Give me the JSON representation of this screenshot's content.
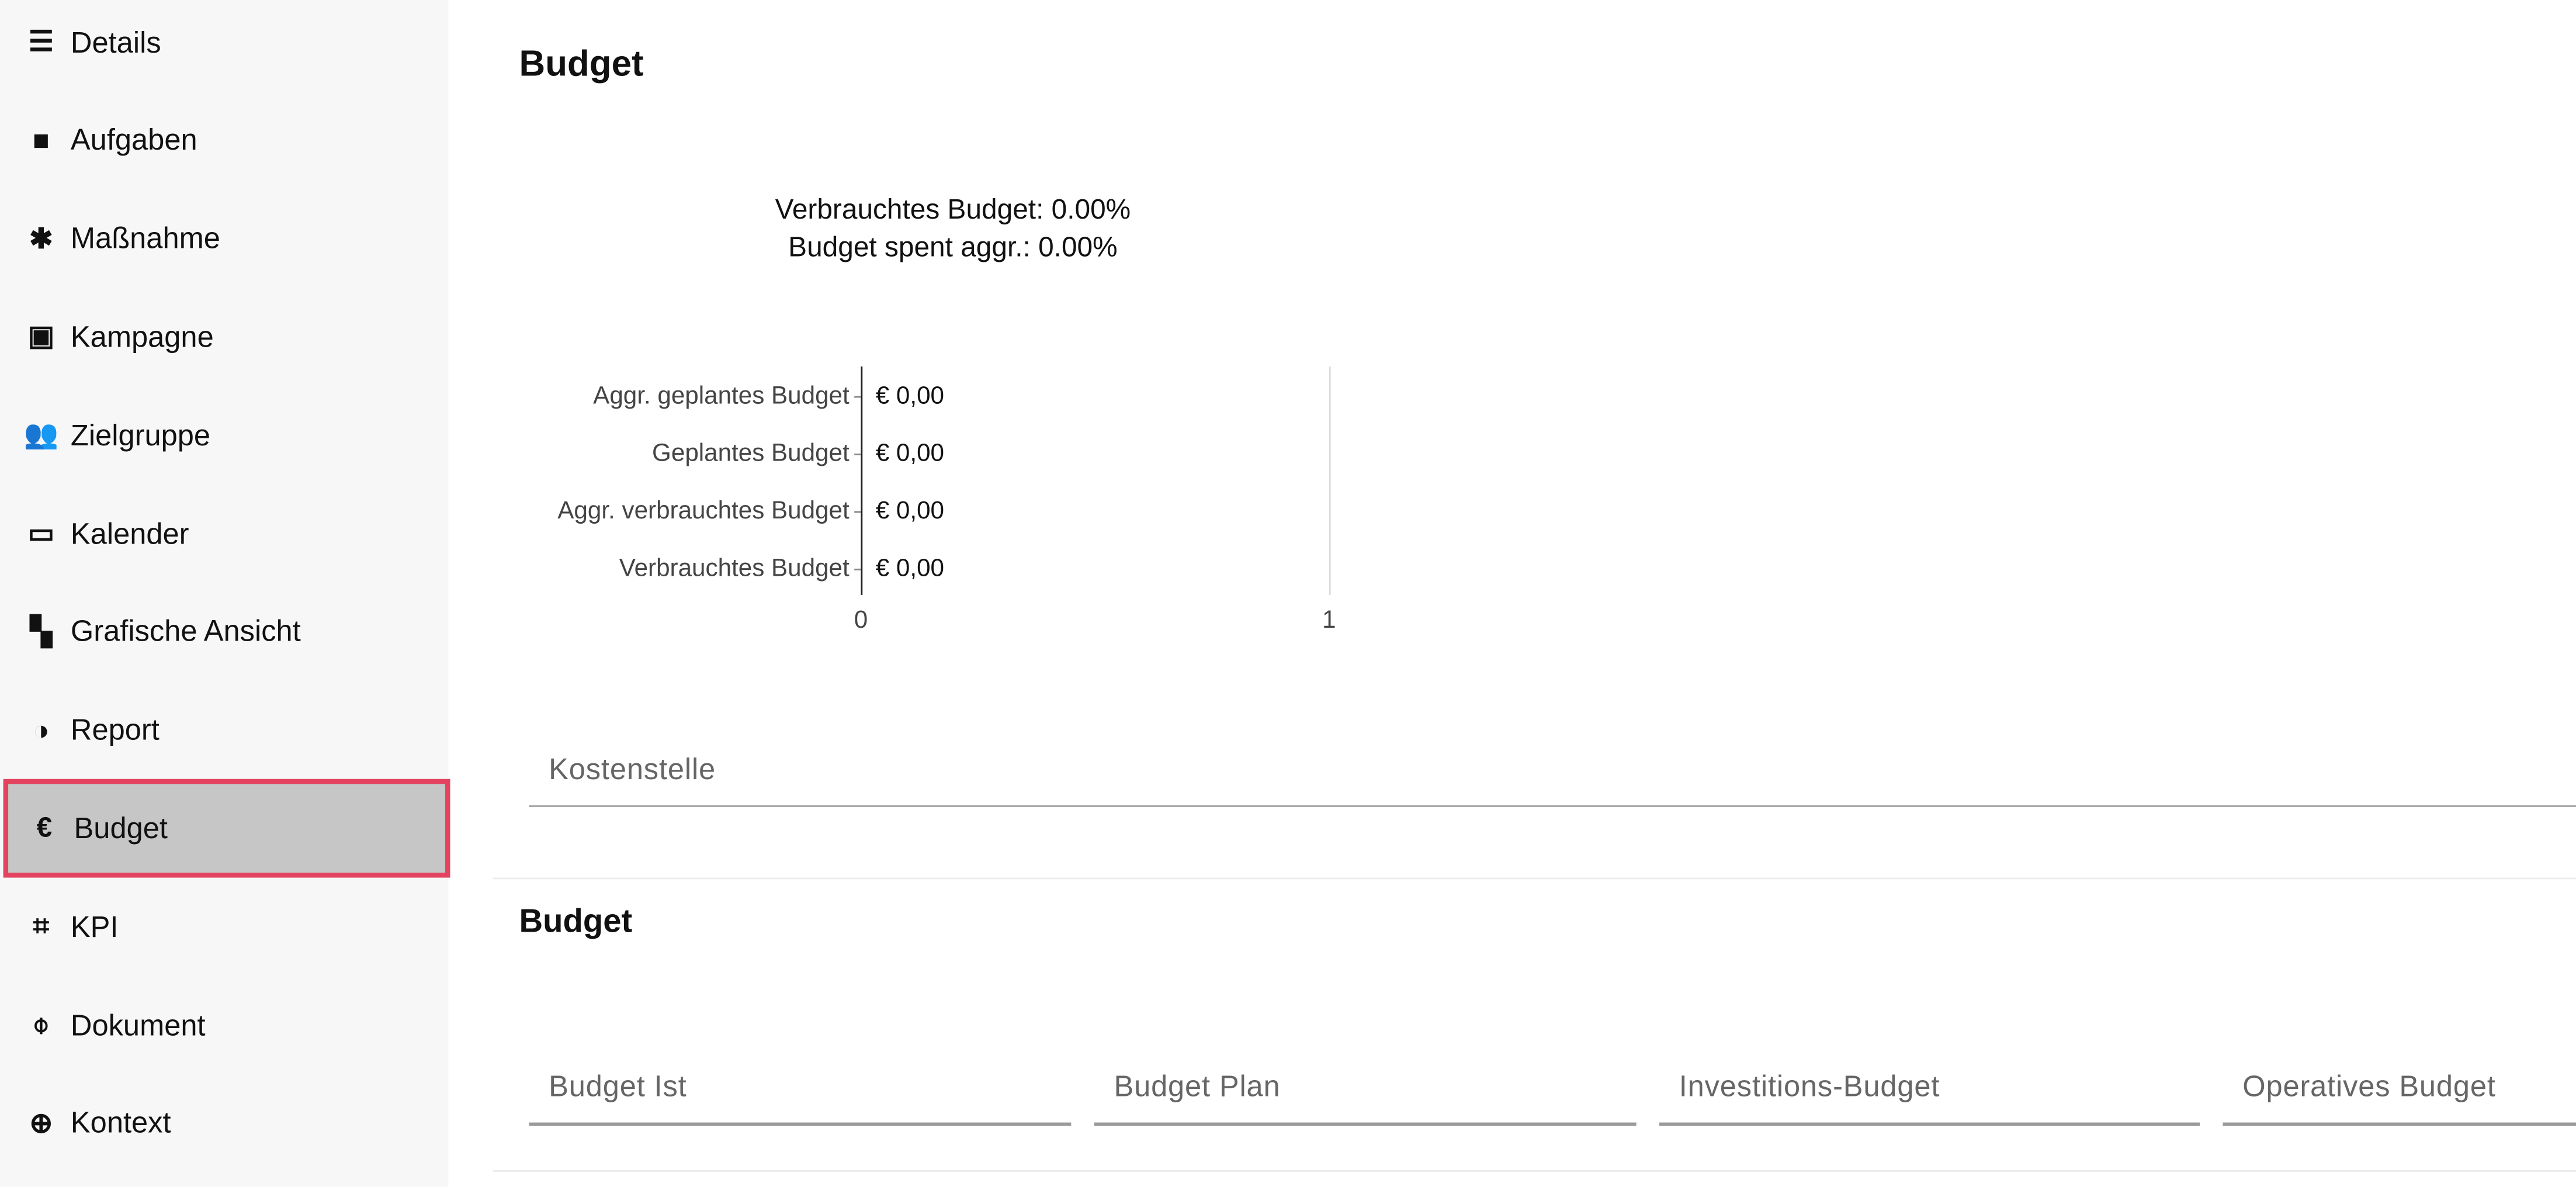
{
  "sidebar": {
    "items": [
      {
        "label": "Details",
        "icon": "details-lines-icon"
      },
      {
        "label": "Aufgaben",
        "icon": "briefcase-icon"
      },
      {
        "label": "Maßnahme",
        "icon": "gear-icon"
      },
      {
        "label": "Kampagne",
        "icon": "presentation-icon"
      },
      {
        "label": "Zielgruppe",
        "icon": "people-icon"
      },
      {
        "label": "Kalender",
        "icon": "calendar-icon"
      },
      {
        "label": "Grafische Ansicht",
        "icon": "hierarchy-icon"
      },
      {
        "label": "Report",
        "icon": "pie-chart-icon"
      },
      {
        "label": "Budget",
        "icon": "euro-icon",
        "active": true
      },
      {
        "label": "KPI",
        "icon": "focus-icon"
      },
      {
        "label": "Dokument",
        "icon": "paperclip-icon"
      },
      {
        "label": "Kontext",
        "icon": "globe-icon"
      }
    ],
    "active_color": "#e4435f"
  },
  "main": {
    "title": "Budget",
    "kostenstelle_label": "Kostenstelle",
    "budget_section_title": "Budget",
    "fields": [
      "Budget Ist",
      "Budget Plan",
      "Investitions-Budget",
      "Operatives Budget"
    ]
  },
  "chart_data": {
    "type": "bar",
    "title": [
      "Verbrauchtes Budget: 0.00%",
      "Budget spent aggr.: 0.00%"
    ],
    "categories": [
      "Aggr. geplantes Budget",
      "Geplantes Budget",
      "Aggr. verbrauchtes Budget",
      "Verbrauchtes Budget"
    ],
    "values": [
      0,
      0,
      0,
      0
    ],
    "data_labels": [
      "€ 0,00",
      "€ 0,00",
      "€ 0,00",
      "€ 0,00"
    ],
    "xlim": [
      0,
      1
    ],
    "xticks": [
      "0",
      "1"
    ],
    "orientation": "horizontal"
  }
}
